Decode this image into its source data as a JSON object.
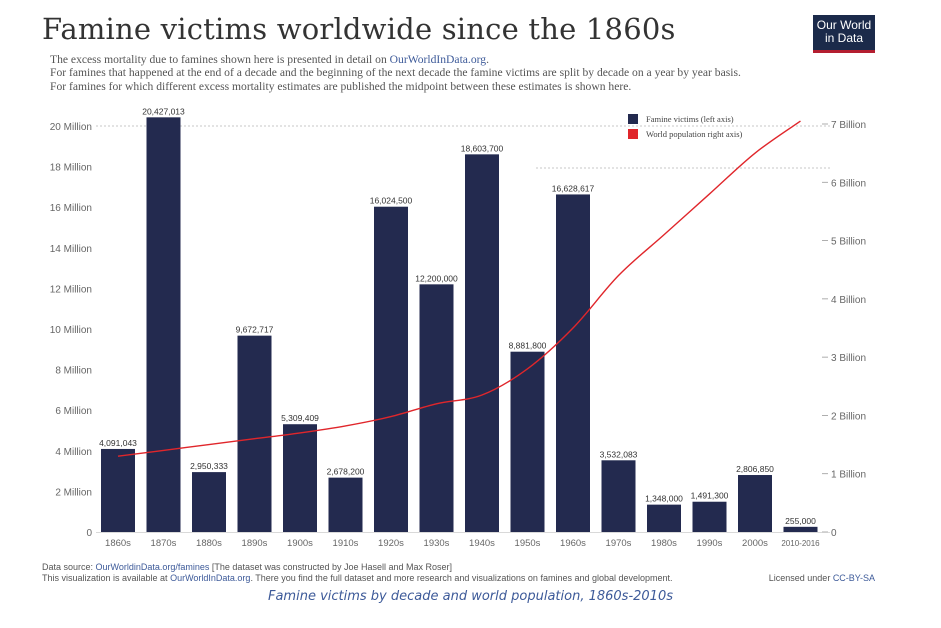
{
  "title": "Famine victims worldwide since the 1860s",
  "subtitle": {
    "line1_text": "The excess mortality due to famines shown here is presented in detail on ",
    "line1_link": "OurWorldInData.org",
    "line1_end": ".",
    "line2": "For famines that happened at the end of a decade and the beginning of the next decade the famine victims are split by decade on a year by year basis.",
    "line3": "For famines for which different excess mortality estimates are published the midpoint between these estimates is shown here."
  },
  "logo": {
    "line1": "Our World",
    "line2": "in Data"
  },
  "footer": {
    "source_prefix": "Data source: ",
    "source_link": "OurWorldinData.org/famines",
    "source_rest": " [The dataset was constructed by Joe Hasell and Max Roser]",
    "line2_prefix": "This visualization is available at ",
    "line2_link": "OurWorldInData.org",
    "line2_rest": ". There you find the full dataset and more research and visualizations on famines and global development.",
    "license_prefix": "Licensed under ",
    "license_link": "CC-BY-SA"
  },
  "caption": "Famine victims by decade and world population, 1860s-2010s",
  "colors": {
    "bar": "#232a4f",
    "line": "#e0262b",
    "text": "#555555"
  },
  "chart_data": {
    "type": "bar",
    "categories": [
      "1860s",
      "1870s",
      "1880s",
      "1890s",
      "1900s",
      "1910s",
      "1920s",
      "1930s",
      "1940s",
      "1950s",
      "1960s",
      "1970s",
      "1980s",
      "1990s",
      "2000s",
      "2010-2016"
    ],
    "series": [
      {
        "name": "Famine victims (left axis)",
        "values": [
          4091043,
          20427013,
          2950333,
          9672717,
          5309409,
          2678200,
          16024500,
          12200000,
          18603700,
          8881800,
          16628617,
          3532083,
          1348000,
          1491300,
          2806850,
          255000
        ],
        "labels": [
          "4,091,043",
          "20,427,013",
          "2,950,333",
          "9,672,717",
          "5,309,409",
          "2,678,200",
          "16,024,500",
          "12,200,000",
          "18,603,700",
          "8,881,800",
          "16,628,617",
          "3,532,083",
          "1,348,000",
          "1,491,300",
          "2,806,850",
          "255,000"
        ],
        "color": "#232a4f"
      },
      {
        "name": "World population right axis)",
        "type": "line",
        "axis": "right",
        "x": [
          0,
          1,
          2,
          3,
          4,
          5,
          6,
          7,
          8,
          9,
          10,
          11,
          12,
          13,
          14,
          15
        ],
        "values": [
          1.3,
          1.4,
          1.5,
          1.6,
          1.7,
          1.82,
          1.98,
          2.2,
          2.35,
          2.8,
          3.5,
          4.4,
          5.1,
          5.8,
          6.5,
          7.05
        ],
        "color": "#e0262b"
      }
    ],
    "left_axis": {
      "ticks": [
        "0",
        "2 Million",
        "4 Million",
        "6 Million",
        "8 Million",
        "10 Million",
        "12 Million",
        "14 Million",
        "16 Million",
        "18 Million",
        "20 Million"
      ],
      "min": 0,
      "max": 20000000,
      "step": 2000000
    },
    "right_axis": {
      "ticks": [
        "0",
        "1 Billion",
        "2 Billion",
        "3 Billion",
        "4 Billion",
        "5 Billion",
        "6 Billion",
        "7 Billion"
      ],
      "min": 0,
      "max": 7
    },
    "legend_position": "top-right",
    "grid": "dashed horizontal at top"
  }
}
